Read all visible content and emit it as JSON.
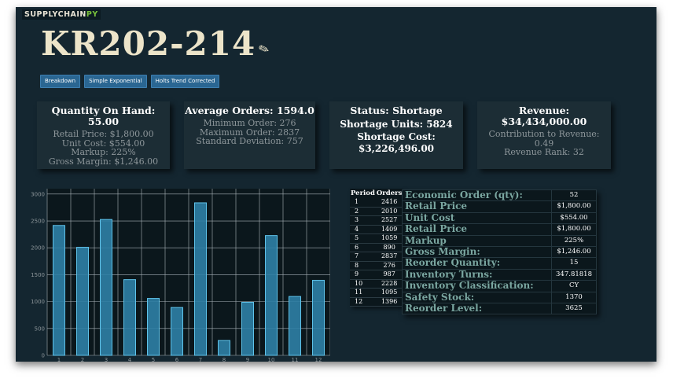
{
  "app": {
    "logo_main": "SUPPLYCHAIN",
    "logo_accent": "PY"
  },
  "header": {
    "title": "KR202-214",
    "edit_icon": "✎"
  },
  "buttons": [
    {
      "label": "Breakdown"
    },
    {
      "label": "Simple Exponential"
    },
    {
      "label": "Holts Trend Corrected"
    }
  ],
  "cards": {
    "quantity": {
      "heading": "Quantity On Hand: 55.00",
      "lines": [
        "Retail Price: $1,800.00",
        "Unit Cost: $554.00",
        "Markup: 225%",
        "Gross Margin: $1,246.00"
      ]
    },
    "orders": {
      "heading": "Average Orders: 1594.0",
      "lines": [
        "Minimum Order: 276",
        "Maximum Order: 2837",
        "Standard Deviation: 757"
      ]
    },
    "status": {
      "heading": "Status: Shortage",
      "line2": "Shortage Units: 5824",
      "line3": "Shortage Cost: $3,226,496.00"
    },
    "revenue": {
      "heading": "Revenue: $34,434,000.00",
      "lines": [
        "Contribution to Revenue:",
        "0.49",
        "Revenue Rank: 32"
      ]
    }
  },
  "chart_data": {
    "type": "bar",
    "categories": [
      "1",
      "2",
      "3",
      "4",
      "5",
      "6",
      "7",
      "8",
      "9",
      "10",
      "11",
      "12"
    ],
    "values": [
      2416,
      2010,
      2527,
      1409,
      1059,
      890,
      2837,
      276,
      987,
      2228,
      1095,
      1396
    ],
    "yticks": [
      0,
      500,
      1000,
      1500,
      2000,
      2500,
      3000
    ],
    "ylim": [
      0,
      3100
    ],
    "grid": true,
    "colors": {
      "bar_fill": "#2e7fa6",
      "bar_edge": "#5fc3ea",
      "grid": "#a8b2b8",
      "background": "#0b171c"
    }
  },
  "orders_table": {
    "headers": [
      "Period",
      "Orders"
    ],
    "rows": [
      [
        "1",
        "2416"
      ],
      [
        "2",
        "2010"
      ],
      [
        "3",
        "2527"
      ],
      [
        "4",
        "1409"
      ],
      [
        "5",
        "1059"
      ],
      [
        "6",
        "890"
      ],
      [
        "7",
        "2837"
      ],
      [
        "8",
        "276"
      ],
      [
        "9",
        "987"
      ],
      [
        "10",
        "2228"
      ],
      [
        "11",
        "1095"
      ],
      [
        "12",
        "1396"
      ]
    ]
  },
  "metrics": [
    {
      "label": "Economic Order (qty):",
      "value": "52"
    },
    {
      "label": "Retail Price",
      "value": "$1,800.00"
    },
    {
      "label": "Unit Cost",
      "value": "$554.00"
    },
    {
      "label": "Retail Price",
      "value": "$1,800.00"
    },
    {
      "label": "Markup",
      "value": "225%"
    },
    {
      "label": "Gross Margin:",
      "value": "$1,246.00"
    },
    {
      "label": "Reorder Quantity:",
      "value": "15"
    },
    {
      "label": "Inventory Turns:",
      "value": "347.81818"
    },
    {
      "label": "Inventory Classification:",
      "value": "CY"
    },
    {
      "label": "Safety Stock:",
      "value": "1370"
    },
    {
      "label": "Reorder Level:",
      "value": "3625"
    }
  ]
}
